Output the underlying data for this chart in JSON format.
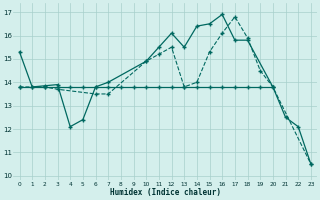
{
  "xlabel": "Humidex (Indice chaleur)",
  "bg_color": "#d4efec",
  "grid_color": "#a8d0cb",
  "line_color": "#006860",
  "xlim": [
    -0.5,
    23.5
  ],
  "ylim": [
    9.8,
    17.4
  ],
  "yticks": [
    10,
    11,
    12,
    13,
    14,
    15,
    16,
    17
  ],
  "xticks": [
    0,
    1,
    2,
    3,
    4,
    5,
    6,
    7,
    8,
    9,
    10,
    11,
    12,
    13,
    14,
    15,
    16,
    17,
    18,
    19,
    20,
    21,
    22,
    23
  ],
  "series1_x": [
    0,
    1,
    2,
    3,
    4,
    5,
    6,
    7,
    8,
    9,
    10,
    11,
    12,
    13,
    14,
    15,
    16,
    17,
    18,
    19,
    20
  ],
  "series1_y": [
    13.8,
    13.8,
    13.8,
    13.8,
    13.8,
    13.8,
    13.8,
    13.8,
    13.8,
    13.8,
    13.8,
    13.8,
    13.8,
    13.8,
    13.8,
    13.8,
    13.8,
    13.8,
    13.8,
    13.8,
    13.8
  ],
  "series2_x": [
    0,
    1,
    2,
    3,
    4,
    5,
    6,
    7,
    10,
    11,
    12,
    13,
    14,
    15,
    16,
    17,
    18,
    20,
    21,
    22,
    23
  ],
  "series2_y": [
    15.3,
    13.8,
    13.85,
    13.9,
    12.1,
    12.4,
    13.8,
    14.0,
    14.9,
    15.5,
    16.1,
    15.5,
    16.4,
    16.5,
    16.9,
    15.8,
    15.8,
    13.8,
    12.5,
    12.1,
    10.5
  ],
  "series3_x": [
    0,
    2,
    3,
    6,
    7,
    10,
    11,
    12,
    13,
    14,
    15,
    16,
    17,
    18,
    19,
    20,
    23
  ],
  "series3_y": [
    13.8,
    13.8,
    13.7,
    13.5,
    13.5,
    14.9,
    15.2,
    15.5,
    13.8,
    14.0,
    15.3,
    16.1,
    16.8,
    15.9,
    14.5,
    13.8,
    10.5
  ]
}
